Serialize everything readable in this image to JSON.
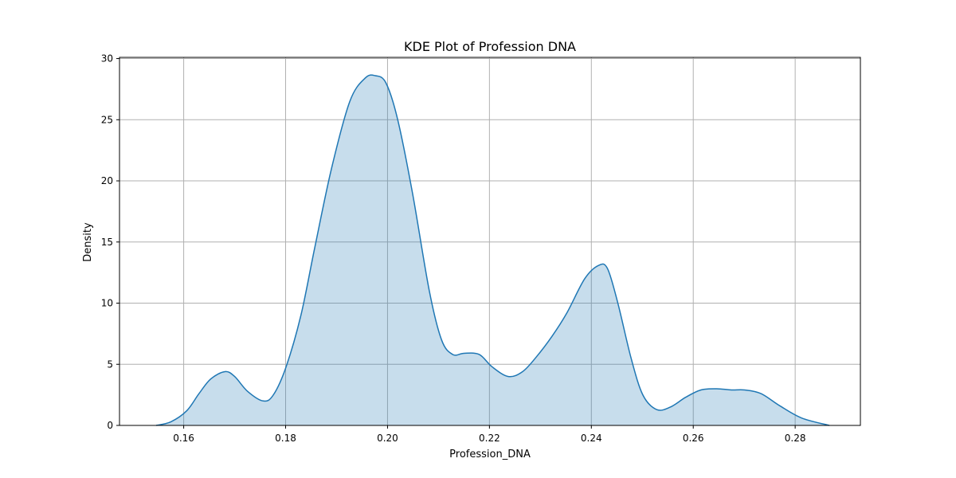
{
  "chart_data": {
    "type": "area",
    "title": "KDE Plot of Profession DNA",
    "xlabel": "Profession_DNA",
    "ylabel": "Density",
    "xlim": [
      0.1474,
      0.2928
    ],
    "ylim": [
      0,
      30.1
    ],
    "xticks": [
      0.16,
      0.18,
      0.2,
      0.22,
      0.24,
      0.26,
      0.28
    ],
    "xtick_labels": [
      "0.16",
      "0.18",
      "0.20",
      "0.22",
      "0.24",
      "0.26",
      "0.28"
    ],
    "yticks": [
      0,
      5,
      10,
      15,
      20,
      25,
      30
    ],
    "ytick_labels": [
      "0",
      "5",
      "10",
      "15",
      "20",
      "25",
      "30"
    ],
    "grid": true,
    "line_color": "#1f77b4",
    "fill_color": "#1f77b4",
    "fill_alpha": 0.25,
    "x": [
      0.1546,
      0.1575,
      0.1606,
      0.163,
      0.1653,
      0.1681,
      0.17,
      0.1725,
      0.1756,
      0.1776,
      0.1801,
      0.183,
      0.1857,
      0.189,
      0.1926,
      0.1956,
      0.1976,
      0.1997,
      0.202,
      0.2049,
      0.2082,
      0.2106,
      0.2128,
      0.215,
      0.218,
      0.2205,
      0.2237,
      0.2265,
      0.2292,
      0.2323,
      0.2352,
      0.2387,
      0.2415,
      0.2432,
      0.2452,
      0.2478,
      0.2501,
      0.2528,
      0.2555,
      0.2585,
      0.2615,
      0.2646,
      0.2675,
      0.2701,
      0.2733,
      0.277,
      0.2813,
      0.2867
    ],
    "y": [
      0.0,
      0.3,
      1.2,
      2.6,
      3.8,
      4.4,
      4.0,
      2.8,
      2.0,
      2.5,
      4.8,
      9.0,
      14.5,
      21.0,
      26.5,
      28.4,
      28.6,
      28.0,
      25.0,
      19.0,
      11.0,
      7.0,
      5.8,
      5.9,
      5.8,
      4.8,
      4.0,
      4.4,
      5.6,
      7.3,
      9.2,
      12.0,
      13.1,
      12.8,
      10.0,
      5.5,
      2.5,
      1.3,
      1.5,
      2.3,
      2.9,
      3.0,
      2.9,
      2.9,
      2.6,
      1.6,
      0.6,
      0.0
    ]
  }
}
